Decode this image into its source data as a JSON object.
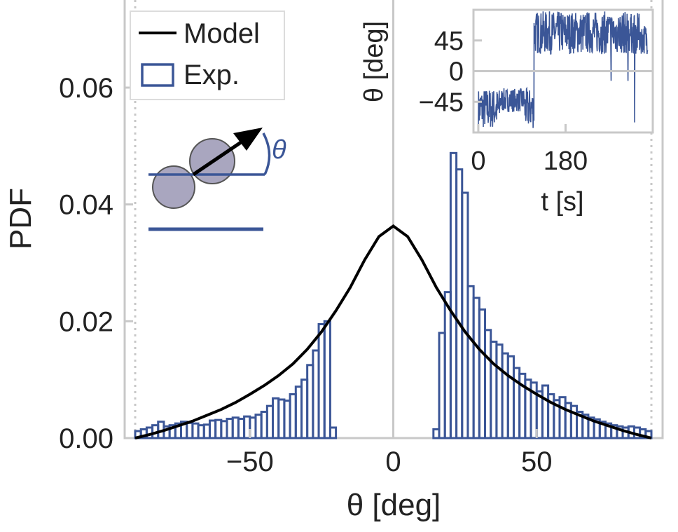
{
  "chart_data": [
    {
      "type": "bar",
      "xlabel": "θ [deg]",
      "ylabel": "PDF",
      "xlim": [
        -90,
        90
      ],
      "ylim": [
        0,
        0.075
      ],
      "xticks": [
        -50,
        0,
        50
      ],
      "xtick_labels": [
        "−50",
        "0",
        "50"
      ],
      "yticks": [
        0.0,
        0.02,
        0.04,
        0.06
      ],
      "ytick_labels": [
        "0.00",
        "0.02",
        "0.04",
        "0.06"
      ],
      "grid": false,
      "legend_position": "top-left",
      "legend": [
        {
          "label": "Model",
          "kind": "line",
          "color": "#000000"
        },
        {
          "label": "Exp.",
          "kind": "bar",
          "color": "#3b5697"
        }
      ],
      "bin_width": 2,
      "histogram": {
        "name": "Exp.",
        "color": "#3b5697",
        "bin_left_edges": [
          -90,
          -88,
          -86,
          -84,
          -82,
          -80,
          -78,
          -76,
          -74,
          -72,
          -70,
          -68,
          -66,
          -64,
          -62,
          -60,
          -58,
          -56,
          -54,
          -52,
          -50,
          -48,
          -46,
          -44,
          -42,
          -40,
          -38,
          -36,
          -34,
          -32,
          -30,
          -28,
          -26,
          -24,
          -22,
          -20,
          -18,
          -16,
          -14,
          -12,
          -10,
          -8,
          -6,
          -4,
          -2,
          0,
          2,
          4,
          6,
          8,
          10,
          12,
          14,
          16,
          18,
          20,
          22,
          24,
          26,
          28,
          30,
          32,
          34,
          36,
          38,
          40,
          42,
          44,
          46,
          48,
          50,
          52,
          54,
          56,
          58,
          60,
          62,
          64,
          66,
          68,
          70,
          72,
          74,
          76,
          78,
          80,
          82,
          84,
          86,
          88
        ],
        "values": [
          0.0012,
          0.0015,
          0.0018,
          0.0022,
          0.0028,
          0.002,
          0.0022,
          0.0025,
          0.0028,
          0.0026,
          0.0025,
          0.0022,
          0.0023,
          0.003,
          0.0031,
          0.0029,
          0.0033,
          0.0035,
          0.0033,
          0.0037,
          0.0035,
          0.004,
          0.0045,
          0.0055,
          0.0068,
          0.0066,
          0.0064,
          0.0075,
          0.0088,
          0.01,
          0.0125,
          0.015,
          0.0195,
          0.02,
          0.0018,
          0,
          0,
          0,
          0,
          0,
          0,
          0,
          0,
          0,
          0,
          0,
          0,
          0,
          0,
          0,
          0,
          0,
          0.0015,
          0.018,
          0.025,
          0.0488,
          0.046,
          0.042,
          0.026,
          0.024,
          0.022,
          0.0185,
          0.0165,
          0.016,
          0.0145,
          0.014,
          0.012,
          0.011,
          0.01,
          0.0095,
          0.008,
          0.009,
          0.0075,
          0.0065,
          0.007,
          0.006,
          0.0055,
          0.0045,
          0.004,
          0.0035,
          0.0032,
          0.0028,
          0.0025,
          0.0022,
          0.002,
          0.0018,
          0.002,
          0.0018,
          0.0015,
          0.0012
        ]
      },
      "model_curve": {
        "name": "Model",
        "color": "#000000",
        "x": [
          -90,
          -85,
          -80,
          -75,
          -70,
          -65,
          -60,
          -55,
          -50,
          -45,
          -40,
          -35,
          -30,
          -25,
          -20,
          -15,
          -10,
          -5,
          0,
          5,
          10,
          15,
          20,
          25,
          30,
          35,
          40,
          45,
          50,
          55,
          60,
          65,
          70,
          75,
          80,
          85,
          90
        ],
        "y": [
          0.0,
          0.0006,
          0.0013,
          0.0021,
          0.0029,
          0.0039,
          0.0049,
          0.0061,
          0.0075,
          0.009,
          0.0107,
          0.0127,
          0.0152,
          0.0182,
          0.0218,
          0.0258,
          0.0305,
          0.0345,
          0.0363,
          0.0345,
          0.0305,
          0.0258,
          0.0218,
          0.0182,
          0.0152,
          0.0127,
          0.0107,
          0.009,
          0.0075,
          0.0061,
          0.0049,
          0.0039,
          0.0029,
          0.0021,
          0.0013,
          0.0006,
          0.0
        ]
      },
      "reference_lines": [
        {
          "axis": "x",
          "value": 0,
          "style": "solid",
          "color": "#c8c8c8"
        },
        {
          "axis": "x",
          "value": -90,
          "style": "dotted",
          "color": "#c8c8c8"
        },
        {
          "axis": "x",
          "value": 90,
          "style": "dotted",
          "color": "#c8c8c8"
        }
      ]
    },
    {
      "type": "line",
      "xlabel": "t [s]",
      "ylabel": "θ [deg]",
      "xlim": [
        -10,
        360
      ],
      "ylim": [
        -90,
        90
      ],
      "xticks": [
        0,
        180
      ],
      "xtick_labels": [
        "0",
        "180"
      ],
      "yticks": [
        -45,
        0,
        45
      ],
      "ytick_labels": [
        "−45",
        "0",
        "45"
      ],
      "legend_position": "none",
      "color": "#3b5697",
      "segments": [
        {
          "t_start": 0,
          "t_end": 45,
          "low": -85,
          "high": -25
        },
        {
          "t_start": 45,
          "t_end": 95,
          "low": -60,
          "high": -25
        },
        {
          "t_start": 95,
          "t_end": 115,
          "low": -85,
          "high": -25
        },
        {
          "t_start": 115,
          "t_end": 265,
          "low": 25,
          "high": 88
        },
        {
          "t_start": 265,
          "t_end": 310,
          "low": 25,
          "high": 88,
          "dips_to": -20
        },
        {
          "t_start": 310,
          "t_end": 335,
          "low": 25,
          "high": 85,
          "dips_to": -85
        },
        {
          "t_start": 335,
          "t_end": 350,
          "low": 25,
          "high": 70
        }
      ],
      "zero_line": {
        "value": 0,
        "color": "#c8c8c8"
      }
    }
  ],
  "diagram": {
    "angle_label": "θ",
    "disk_color": "#a9a6bf",
    "line_color": "#3b5697"
  }
}
